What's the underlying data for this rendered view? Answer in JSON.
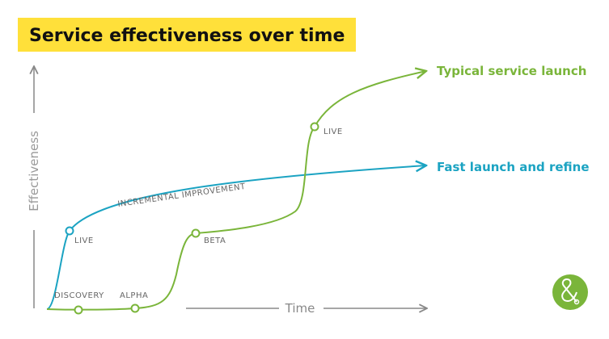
{
  "title": "Service effectiveness over time",
  "axes": {
    "y": "Effectiveness",
    "x": "Time"
  },
  "curves": [
    {
      "label": "Typical service launch",
      "color": "#7ab53a",
      "stages": [
        "DISCOVERY",
        "ALPHA",
        "BETA",
        "LIVE"
      ]
    },
    {
      "label": "Fast launch and refine",
      "color": "#1ba3c2",
      "stages": [
        "LIVE"
      ],
      "annotation": "INCREMENTAL IMPROVEMENT"
    }
  ]
}
